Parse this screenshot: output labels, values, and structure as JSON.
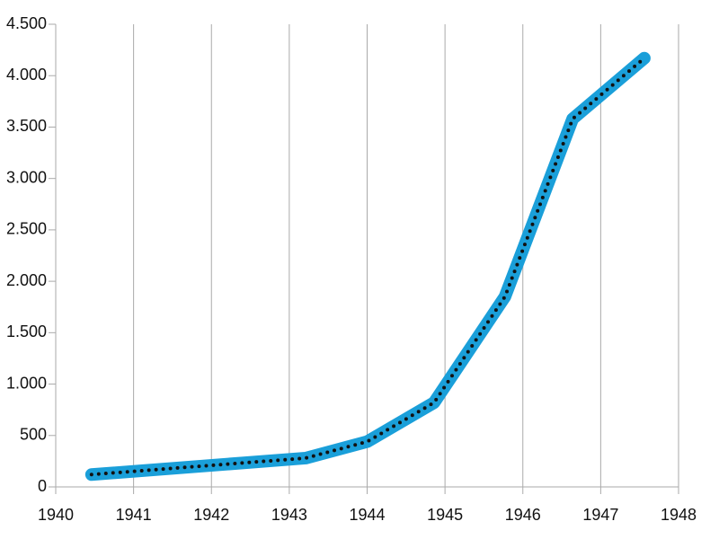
{
  "chart_data": {
    "type": "line",
    "x": [
      1940.46,
      1943.21,
      1944.0,
      1944.86,
      1945.77,
      1946.64,
      1947.56
    ],
    "series": [
      {
        "color": "#1a9fd9",
        "dot_color": "#111111",
        "values": [
          120,
          280,
          440,
          820,
          1850,
          3580,
          4170
        ]
      }
    ],
    "xlim": [
      1940,
      1948
    ],
    "xticks": [
      1940,
      1941,
      1942,
      1943,
      1944,
      1945,
      1946,
      1947,
      1948
    ],
    "ylim": [
      0,
      4500
    ],
    "yticks": [
      0,
      500,
      {
        "value": 1000,
        "label": "1.000"
      },
      {
        "value": 1500,
        "label": "1.500"
      },
      {
        "value": 2000,
        "label": "2.000"
      },
      {
        "value": 2500,
        "label": "2.500"
      },
      {
        "value": 3000,
        "label": "3.000"
      },
      {
        "value": 3500,
        "label": "3.500"
      },
      {
        "value": 4000,
        "label": "4.000"
      },
      {
        "value": 4500,
        "label": "4.500"
      }
    ],
    "grid": "x"
  }
}
